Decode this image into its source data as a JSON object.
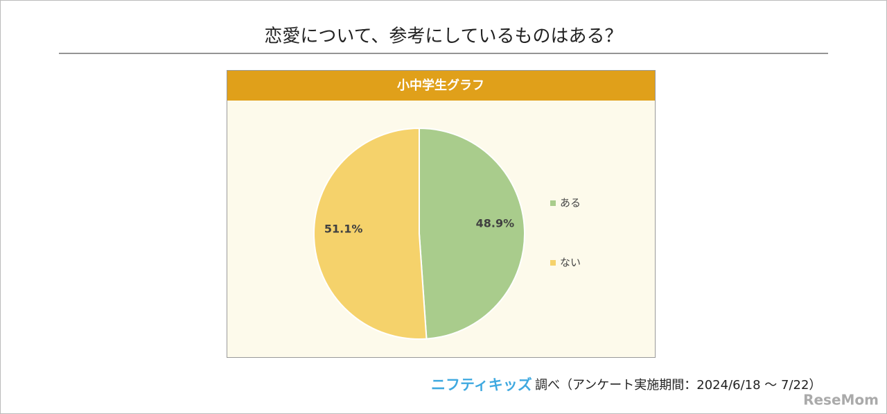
{
  "chart_data": {
    "type": "pie",
    "title": "恋愛について、参考にしているものはある？",
    "subtitle": "小中学生グラフ",
    "categories": [
      "ある",
      "ない"
    ],
    "values": [
      48.9,
      51.1
    ],
    "value_labels": [
      "48.9%",
      "51.1%"
    ],
    "colors": [
      "#a9cc8c",
      "#f5d26b"
    ],
    "legend": "right"
  },
  "footer": {
    "logo": "ニフティキッズ",
    "note": "調べ（アンケート実施期間：2024/6/18 ～ 7/22）"
  },
  "watermark": "ReseMom"
}
